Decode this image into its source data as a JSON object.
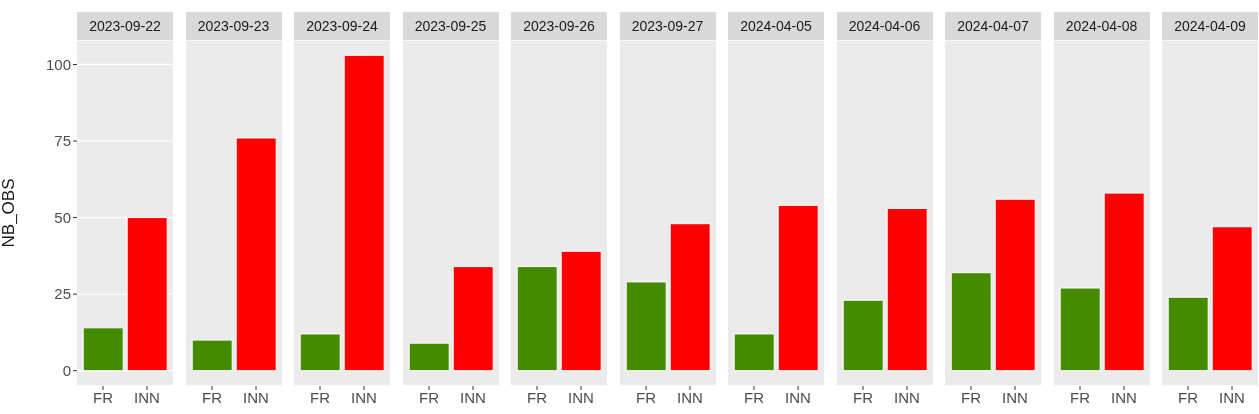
{
  "chart_data": [
    {
      "type": "bar",
      "title": "2023-09-22",
      "ylabel": "NB_OBS",
      "categories": [
        "FR",
        "INN"
      ],
      "values": [
        14,
        50
      ],
      "colors": [
        "#458b00",
        "#ff0000"
      ],
      "ylim": [
        -5,
        108
      ],
      "yticks": [
        0,
        25,
        50,
        75,
        100
      ],
      "grid": "y"
    },
    {
      "type": "bar",
      "title": "2023-09-23",
      "categories": [
        "FR",
        "INN"
      ],
      "values": [
        10,
        76
      ],
      "colors": [
        "#458b00",
        "#ff0000"
      ],
      "ylim": [
        -5,
        108
      ],
      "yticks": [
        0,
        25,
        50,
        75,
        100
      ],
      "grid": "y",
      "tick_labels": "x"
    },
    {
      "type": "bar",
      "title": "2023-09-24",
      "categories": [
        "FR",
        "INN"
      ],
      "values": [
        12,
        103
      ],
      "colors": [
        "#458b00",
        "#ff0000"
      ],
      "ylim": [
        -5,
        108
      ],
      "yticks": [
        0,
        25,
        50,
        75,
        100
      ],
      "grid": "y",
      "tick_labels": "x"
    },
    {
      "type": "bar",
      "title": "2023-09-25",
      "categories": [
        "FR",
        "INN"
      ],
      "values": [
        9,
        34
      ],
      "colors": [
        "#458b00",
        "#ff0000"
      ],
      "ylim": [
        -5,
        108
      ],
      "yticks": [
        0,
        25,
        50,
        75,
        100
      ],
      "grid": "y",
      "tick_labels": "x"
    },
    {
      "type": "bar",
      "title": "2023-09-26",
      "categories": [
        "FR",
        "INN"
      ],
      "values": [
        34,
        39
      ],
      "colors": [
        "#458b00",
        "#ff0000"
      ],
      "ylim": [
        -5,
        108
      ],
      "yticks": [
        0,
        25,
        50,
        75,
        100
      ],
      "grid": "y",
      "tick_labels": "x"
    },
    {
      "type": "bar",
      "title": "2023-09-27",
      "categories": [
        "FR",
        "INN"
      ],
      "values": [
        29,
        48
      ],
      "colors": [
        "#458b00",
        "#ff0000"
      ],
      "ylim": [
        -5,
        108
      ],
      "yticks": [
        0,
        25,
        50,
        75,
        100
      ],
      "grid": "y",
      "tick_labels": "x"
    },
    {
      "type": "bar",
      "title": "2024-04-05",
      "categories": [
        "FR",
        "INN"
      ],
      "values": [
        12,
        54
      ],
      "colors": [
        "#458b00",
        "#ff0000"
      ],
      "ylim": [
        -5,
        108
      ],
      "yticks": [
        0,
        25,
        50,
        75,
        100
      ],
      "grid": "y",
      "tick_labels": "x"
    },
    {
      "type": "bar",
      "title": "2024-04-06",
      "categories": [
        "FR",
        "INN"
      ],
      "values": [
        23,
        53
      ],
      "colors": [
        "#458b00",
        "#ff0000"
      ],
      "ylim": [
        -5,
        108
      ],
      "yticks": [
        0,
        25,
        50,
        75,
        100
      ],
      "grid": "y",
      "tick_labels": "x"
    },
    {
      "type": "bar",
      "title": "2024-04-07",
      "categories": [
        "FR",
        "INN"
      ],
      "values": [
        32,
        56
      ],
      "colors": [
        "#458b00",
        "#ff0000"
      ],
      "ylim": [
        -5,
        108
      ],
      "yticks": [
        0,
        25,
        50,
        75,
        100
      ],
      "grid": "y",
      "tick_labels": "x"
    },
    {
      "type": "bar",
      "title": "2024-04-08",
      "categories": [
        "FR",
        "INN"
      ],
      "values": [
        27,
        58
      ],
      "colors": [
        "#458b00",
        "#ff0000"
      ],
      "ylim": [
        -5,
        108
      ],
      "yticks": [
        0,
        25,
        50,
        75,
        100
      ],
      "grid": "y",
      "tick_labels": "x"
    },
    {
      "type": "bar",
      "title": "2024-04-09",
      "categories": [
        "FR",
        "INN"
      ],
      "values": [
        24,
        47
      ],
      "colors": [
        "#458b00",
        "#ff0000"
      ],
      "ylim": [
        -5,
        108
      ],
      "yticks": [
        0,
        25,
        50,
        75,
        100
      ],
      "grid": "y",
      "tick_labels": "x"
    }
  ]
}
